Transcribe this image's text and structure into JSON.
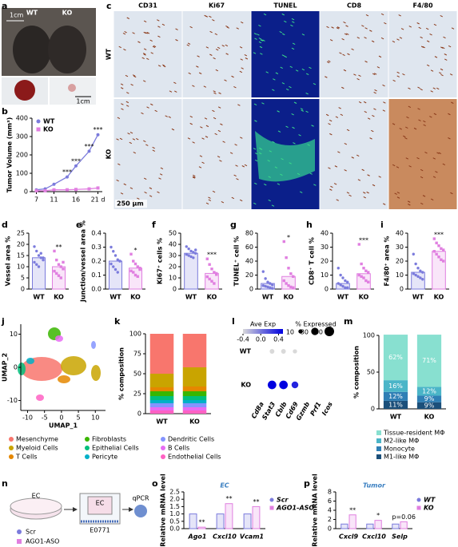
{
  "panel_labels": [
    "a",
    "b",
    "c",
    "d",
    "e",
    "f",
    "g",
    "h",
    "i",
    "j",
    "k",
    "l",
    "m",
    "n",
    "o",
    "p"
  ],
  "photo_a": {
    "scale_top": "1cm",
    "scale_bottom": "1cm",
    "labels": [
      "WT",
      "KO"
    ]
  },
  "micrographs_c": {
    "columns": [
      "CD31",
      "Ki67",
      "TUNEL",
      "CD8",
      "F4/80"
    ],
    "rows": [
      "WT",
      "KO"
    ],
    "scale": "250 µm"
  },
  "schematic_n": {
    "dish": "EC",
    "insert": "EC",
    "cells": "E0771",
    "readout": "qPCR",
    "legend": [
      "Scr",
      "AGO1-ASO"
    ]
  },
  "chart_data": [
    {
      "type": "line",
      "ylabel": "Tumor Volume (mm³)",
      "x": [
        7,
        9,
        11,
        14,
        16,
        19,
        21
      ],
      "xlim": [
        6,
        22
      ],
      "xticks": [
        7,
        11,
        16,
        {
          "value": 21,
          "label": "21 d"
        }
      ],
      "ylim": [
        0,
        400
      ],
      "yticks": [
        0,
        100,
        200,
        300,
        400
      ],
      "series": [
        {
          "name": "WT",
          "color": "#7b7bdc",
          "marker": "circle",
          "values": [
            10,
            15,
            40,
            80,
            140,
            220,
            310
          ]
        },
        {
          "name": "KO",
          "color": "#e07fe0",
          "marker": "square",
          "values": [
            5,
            5,
            10,
            10,
            12,
            15,
            20
          ]
        }
      ],
      "annotations": [
        {
          "x": 14,
          "text": "***"
        },
        {
          "x": 16,
          "text": "***"
        },
        {
          "x": 19,
          "text": "***"
        },
        {
          "x": 21,
          "text": "***"
        }
      ]
    },
    {
      "type": "bar_dots",
      "ylabel": "Vessel area %",
      "categories": [
        "WT",
        "KO"
      ],
      "values": [
        14,
        10
      ],
      "colors": [
        "#7b7bdc",
        "#e07fe0"
      ],
      "markers": [
        "circle",
        "square"
      ],
      "points": [
        [
          19,
          17,
          15,
          14,
          13,
          12,
          11,
          10,
          16,
          14
        ],
        [
          17,
          13,
          11,
          10,
          9,
          8,
          7,
          6,
          5,
          12
        ]
      ],
      "ylim": [
        0,
        25
      ],
      "yticks": [
        0,
        5,
        10,
        15,
        20,
        25
      ],
      "significance": "**"
    },
    {
      "type": "bar_dots",
      "ylabel": "Junction/vessel area %",
      "categories": [
        "WT",
        "KO"
      ],
      "values": [
        0.2,
        0.15
      ],
      "colors": [
        "#7b7bdc",
        "#e07fe0"
      ],
      "markers": [
        "circle",
        "square"
      ],
      "points": [
        [
          0.3,
          0.27,
          0.24,
          0.21,
          0.2,
          0.18,
          0.16,
          0.14,
          0.12,
          0.2
        ],
        [
          0.25,
          0.2,
          0.18,
          0.16,
          0.15,
          0.13,
          0.12,
          0.1,
          0.09,
          0.14
        ]
      ],
      "ylim": [
        0,
        0.4
      ],
      "yticks": [
        {
          "value": 0,
          "label": "0.0"
        },
        0.1,
        0.2,
        0.3,
        0.4
      ],
      "significance": "*"
    },
    {
      "type": "bar_dots",
      "ylabel": "Ki67⁺ cells %",
      "categories": [
        "WT",
        "KO"
      ],
      "values": [
        32,
        14
      ],
      "colors": [
        "#7b7bdc",
        "#e07fe0"
      ],
      "markers": [
        "circle",
        "square"
      ],
      "points": [
        [
          38,
          36,
          34,
          33,
          32,
          31,
          30,
          29,
          28,
          35
        ],
        [
          27,
          22,
          18,
          15,
          13,
          11,
          9,
          7,
          5,
          14
        ]
      ],
      "ylim": [
        0,
        50
      ],
      "yticks": [
        0,
        10,
        20,
        30,
        40,
        50
      ],
      "significance": "***"
    },
    {
      "type": "bar_dots",
      "ylabel": "TUNEL⁺ cell %",
      "categories": [
        "WT",
        "KO"
      ],
      "values": [
        8,
        18
      ],
      "colors": [
        "#7b7bdc",
        "#e07fe0"
      ],
      "markers": [
        "circle",
        "square"
      ],
      "points": [
        [
          25,
          15,
          10,
          8,
          6,
          5,
          4,
          3,
          2,
          1
        ],
        [
          68,
          45,
          30,
          22,
          18,
          12,
          8,
          5,
          3,
          2
        ]
      ],
      "ylim": [
        0,
        80
      ],
      "yticks": [
        0,
        20,
        40,
        60,
        80
      ],
      "significance": "*"
    },
    {
      "type": "bar_dots",
      "ylabel": "CD8⁺ T cell %",
      "categories": [
        "WT",
        "KO"
      ],
      "values": [
        4,
        11
      ],
      "colors": [
        "#7b7bdc",
        "#e07fe0"
      ],
      "markers": [
        "circle",
        "square"
      ],
      "points": [
        [
          15,
          10,
          8,
          6,
          5,
          4,
          3,
          2,
          1,
          1
        ],
        [
          32,
          18,
          15,
          13,
          12,
          10,
          9,
          8,
          6,
          5
        ]
      ],
      "ylim": [
        0,
        40
      ],
      "yticks": [
        0,
        10,
        20,
        30,
        40
      ],
      "significance": "***"
    },
    {
      "type": "bar_dots",
      "ylabel": "F4/80⁺ area %",
      "categories": [
        "WT",
        "KO"
      ],
      "values": [
        12,
        27
      ],
      "colors": [
        "#7b7bdc",
        "#e07fe0"
      ],
      "markers": [
        "circle",
        "square"
      ],
      "points": [
        [
          25,
          18,
          15,
          13,
          12,
          11,
          10,
          9,
          8,
          7
        ],
        [
          36,
          33,
          31,
          29,
          28,
          27,
          25,
          23,
          21,
          20
        ]
      ],
      "ylim": [
        0,
        40
      ],
      "yticks": [
        0,
        10,
        20,
        30,
        40
      ],
      "significance": "***"
    },
    {
      "type": "umap",
      "xlabel": "UMAP_1",
      "ylabel": "UMAP_2",
      "xlim": [
        -12,
        13
      ],
      "ylim": [
        -13,
        13
      ],
      "xticks": [
        -10,
        -5,
        0,
        5,
        10
      ],
      "yticks": [
        -10,
        0,
        10
      ]
    },
    {
      "type": "stacked_bar",
      "ylabel": "% composition",
      "categories": [
        "WT",
        "KO"
      ],
      "ylim": [
        0,
        100
      ],
      "yticks": [
        0,
        25,
        50,
        75,
        100
      ],
      "series": [
        {
          "name": "Endothelial Cells",
          "color": "#ff61c3",
          "values": [
            4,
            4
          ]
        },
        {
          "name": "B Cells",
          "color": "#e76bf3",
          "values": [
            4,
            4
          ]
        },
        {
          "name": "Dendritic Cells",
          "color": "#8494ff",
          "values": [
            5,
            5
          ]
        },
        {
          "name": "Pericyte",
          "color": "#00b0c8",
          "values": [
            4,
            4
          ]
        },
        {
          "name": "Epithelial Cells",
          "color": "#00bf7d",
          "values": [
            5,
            5
          ]
        },
        {
          "name": "Fibroblasts",
          "color": "#39b600",
          "values": [
            6,
            6
          ]
        },
        {
          "name": "T Cells",
          "color": "#e58700",
          "values": [
            5,
            6
          ]
        },
        {
          "name": "Myeloid Cells",
          "color": "#c9a400",
          "values": [
            17,
            24
          ]
        },
        {
          "name": "Mesenchyme",
          "color": "#f8766d",
          "values": [
            50,
            42
          ]
        }
      ]
    },
    {
      "type": "dot_plot",
      "genes": [
        "Cd8a",
        "Stat3",
        "Cblb",
        "Cd69",
        "Gzmb",
        "Prf1",
        "Icos"
      ],
      "rows": [
        "WT",
        "KO"
      ],
      "avg_exp": [
        [
          -0.4,
          -0.4,
          -0.4,
          -0.4,
          -0.4,
          -0.4,
          -0.4
        ],
        [
          -0.4,
          0.5,
          0.5,
          0.35,
          -0.4,
          -0.4,
          -0.4
        ]
      ],
      "pct_expressed": [
        [
          0,
          12,
          12,
          10,
          0,
          0,
          0
        ],
        [
          0,
          40,
          40,
          25,
          0,
          0,
          0
        ]
      ],
      "color_title": "Ave Exp",
      "color_lim": [
        -0.4,
        0.5
      ],
      "color_ticks": [
        -0.4,
        {
          "value": 0,
          "label": "0.0"
        },
        0.4
      ],
      "size_title": "% Expressed",
      "size_legend": [
        10,
        30,
        50
      ]
    },
    {
      "type": "stacked_bar",
      "ylabel": "% composition",
      "categories": [
        "WT",
        "KO"
      ],
      "ylim": [
        0,
        100
      ],
      "yticks": [
        0,
        50,
        100
      ],
      "series": [
        {
          "name": "M1-like MΦ",
          "color": "#1b4f7a",
          "values": [
            11,
            9
          ],
          "value_labels": [
            "11%",
            "9%"
          ]
        },
        {
          "name": "Monocyte",
          "color": "#2f7fb5",
          "values": [
            12,
            9
          ],
          "value_labels": [
            "12%",
            "9%"
          ]
        },
        {
          "name": "M2-like MΦ",
          "color": "#4bb5c8",
          "values": [
            16,
            12
          ],
          "value_labels": [
            "16%",
            "12%"
          ]
        },
        {
          "name": "Tissue-resident MΦ",
          "color": "#88e0d0",
          "values": [
            62,
            71
          ],
          "value_labels": [
            "62%",
            "71%"
          ]
        }
      ]
    },
    {
      "type": "grouped_bar",
      "title": "EC",
      "ylabel": "Relative mRNA level",
      "categories": [
        "Ago1",
        "Cxcl10",
        "Vcam1"
      ],
      "ylim": [
        0,
        2.5
      ],
      "yticks": [
        {
          "value": 0,
          "label": "0.0"
        },
        0.5,
        {
          "value": 1,
          "label": "1.0"
        },
        1.5,
        {
          "value": 2,
          "label": "2.0"
        },
        2.5
      ],
      "series": [
        {
          "name": "Scr",
          "color": "#7b7bdc",
          "values": [
            1,
            1,
            1
          ]
        },
        {
          "name": "AGO1-ASO",
          "color": "#e07fe0",
          "values": [
            0.1,
            1.7,
            1.5
          ],
          "annotations": [
            "**",
            "**",
            "**"
          ]
        }
      ]
    },
    {
      "type": "grouped_bar",
      "title": "Tumor",
      "ylabel": "Relative mRNA level",
      "categories": [
        "Cxcl9",
        "Cxcl10",
        "Selp"
      ],
      "ylim": [
        0,
        8
      ],
      "yticks": [
        0,
        2,
        4,
        6,
        8
      ],
      "series": [
        {
          "name": "WT",
          "color": "#7b7bdc",
          "values": [
            1,
            1,
            1
          ]
        },
        {
          "name": "KO",
          "color": "#e07fe0",
          "values": [
            3,
            1.8,
            1.5
          ],
          "annotations": [
            "**",
            "*",
            "p=0.06"
          ]
        }
      ]
    }
  ]
}
